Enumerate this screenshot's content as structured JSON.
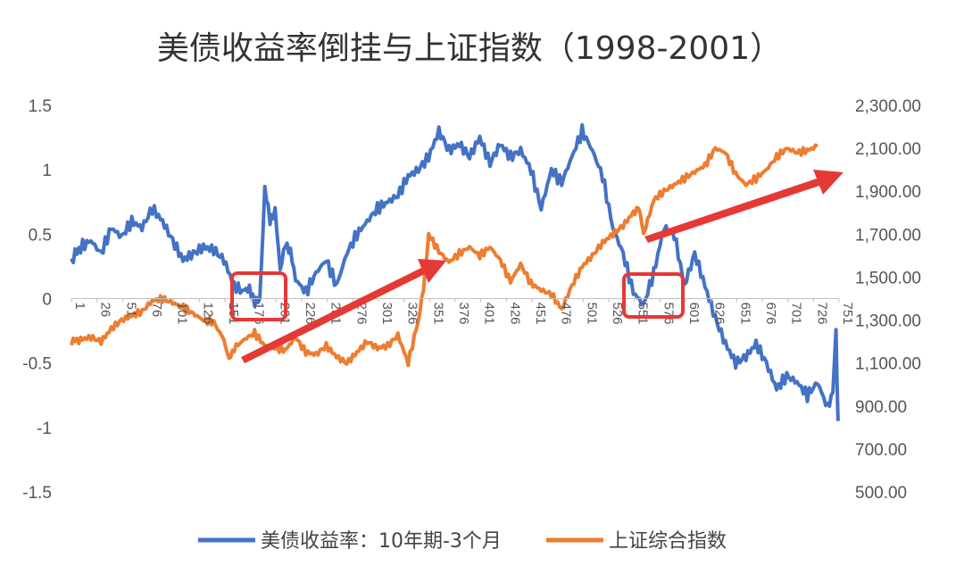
{
  "chart_data": {
    "type": "line",
    "title": "美债收益率倒挂与上证指数（1998-2001）",
    "left_axis": {
      "ylim": [
        -1.5,
        1.5
      ],
      "ticks": [
        "-1.5",
        "-1",
        "-0.5",
        "0",
        "0.5",
        "1",
        "1.5"
      ]
    },
    "right_axis": {
      "ylim": [
        500,
        2300
      ],
      "ticks": [
        "500.00",
        "700.00",
        "900.00",
        "1,100.00",
        "1,300.00",
        "1,500.00",
        "1,700.00",
        "1,900.00",
        "2,100.00",
        "2,300.00"
      ]
    },
    "x_ticks": [
      "1",
      "26",
      "51",
      "76",
      "101",
      "126",
      "151",
      "176",
      "201",
      "226",
      "251",
      "276",
      "301",
      "326",
      "351",
      "376",
      "401",
      "426",
      "451",
      "476",
      "501",
      "526",
      "551",
      "576",
      "601",
      "626",
      "651",
      "676",
      "701",
      "726",
      "751"
    ],
    "x_range": [
      1,
      751
    ],
    "grid": false,
    "legend_position": "bottom",
    "series": [
      {
        "name": "美债收益率：10年期-3个月",
        "color": "#4472C4",
        "axis": "left",
        "x": [
          1,
          10,
          20,
          30,
          40,
          50,
          60,
          70,
          80,
          90,
          100,
          110,
          120,
          130,
          140,
          150,
          160,
          170,
          175,
          180,
          185,
          190,
          195,
          200,
          205,
          210,
          215,
          220,
          230,
          240,
          250,
          260,
          270,
          280,
          290,
          300,
          310,
          320,
          330,
          340,
          350,
          360,
          370,
          380,
          390,
          400,
          410,
          420,
          430,
          440,
          450,
          460,
          470,
          480,
          490,
          500,
          510,
          520,
          530,
          540,
          550,
          560,
          570,
          580,
          590,
          600,
          610,
          620,
          630,
          640,
          650,
          660,
          670,
          680,
          690,
          700,
          710,
          720,
          730,
          740,
          745,
          748,
          750
        ],
        "values": [
          0.3,
          0.4,
          0.45,
          0.35,
          0.55,
          0.48,
          0.6,
          0.55,
          0.7,
          0.6,
          0.45,
          0.3,
          0.35,
          0.4,
          0.38,
          0.3,
          0.1,
          0.05,
          0.1,
          -0.05,
          0.0,
          0.85,
          0.6,
          0.7,
          0.2,
          0.45,
          0.35,
          0.15,
          0.05,
          0.2,
          0.3,
          0.1,
          0.35,
          0.5,
          0.6,
          0.7,
          0.75,
          0.8,
          0.95,
          1.0,
          1.1,
          1.3,
          1.15,
          1.2,
          1.1,
          1.25,
          1.05,
          1.2,
          1.1,
          1.15,
          1.0,
          0.7,
          1.0,
          0.9,
          1.1,
          1.3,
          1.15,
          0.95,
          0.55,
          0.35,
          0.05,
          -0.05,
          0.2,
          0.55,
          0.5,
          0.1,
          0.35,
          0.1,
          -0.15,
          -0.35,
          -0.5,
          -0.45,
          -0.35,
          -0.5,
          -0.7,
          -0.6,
          -0.65,
          -0.75,
          -0.65,
          -0.85,
          -0.7,
          -0.25,
          -0.95
        ]
      },
      {
        "name": "上证综合指数",
        "color": "#ED7D31",
        "axis": "right",
        "x": [
          1,
          10,
          20,
          30,
          40,
          50,
          60,
          70,
          80,
          90,
          100,
          110,
          120,
          130,
          140,
          150,
          155,
          160,
          170,
          180,
          190,
          200,
          210,
          220,
          230,
          240,
          250,
          260,
          270,
          280,
          290,
          300,
          310,
          320,
          330,
          340,
          345,
          350,
          360,
          370,
          380,
          390,
          400,
          410,
          420,
          430,
          440,
          450,
          460,
          470,
          480,
          490,
          500,
          510,
          520,
          530,
          540,
          550,
          555,
          560,
          570,
          580,
          590,
          600,
          610,
          620,
          630,
          640,
          650,
          660,
          670,
          680,
          690,
          700,
          710,
          720,
          730
        ],
        "values": [
          1200,
          1210,
          1220,
          1200,
          1260,
          1300,
          1320,
          1340,
          1390,
          1400,
          1380,
          1360,
          1330,
          1300,
          1290,
          1210,
          1110,
          1170,
          1210,
          1240,
          1180,
          1170,
          1160,
          1220,
          1150,
          1140,
          1180,
          1130,
          1100,
          1150,
          1200,
          1170,
          1180,
          1230,
          1100,
          1300,
          1440,
          1700,
          1620,
          1570,
          1610,
          1640,
          1600,
          1640,
          1580,
          1480,
          1560,
          1470,
          1440,
          1420,
          1350,
          1460,
          1550,
          1600,
          1660,
          1700,
          1740,
          1800,
          1830,
          1700,
          1860,
          1900,
          1930,
          1960,
          1990,
          2020,
          2100,
          2080,
          1980,
          1930,
          1960,
          2000,
          2060,
          2100,
          2080,
          2090,
          2110
        ]
      }
    ]
  }
}
